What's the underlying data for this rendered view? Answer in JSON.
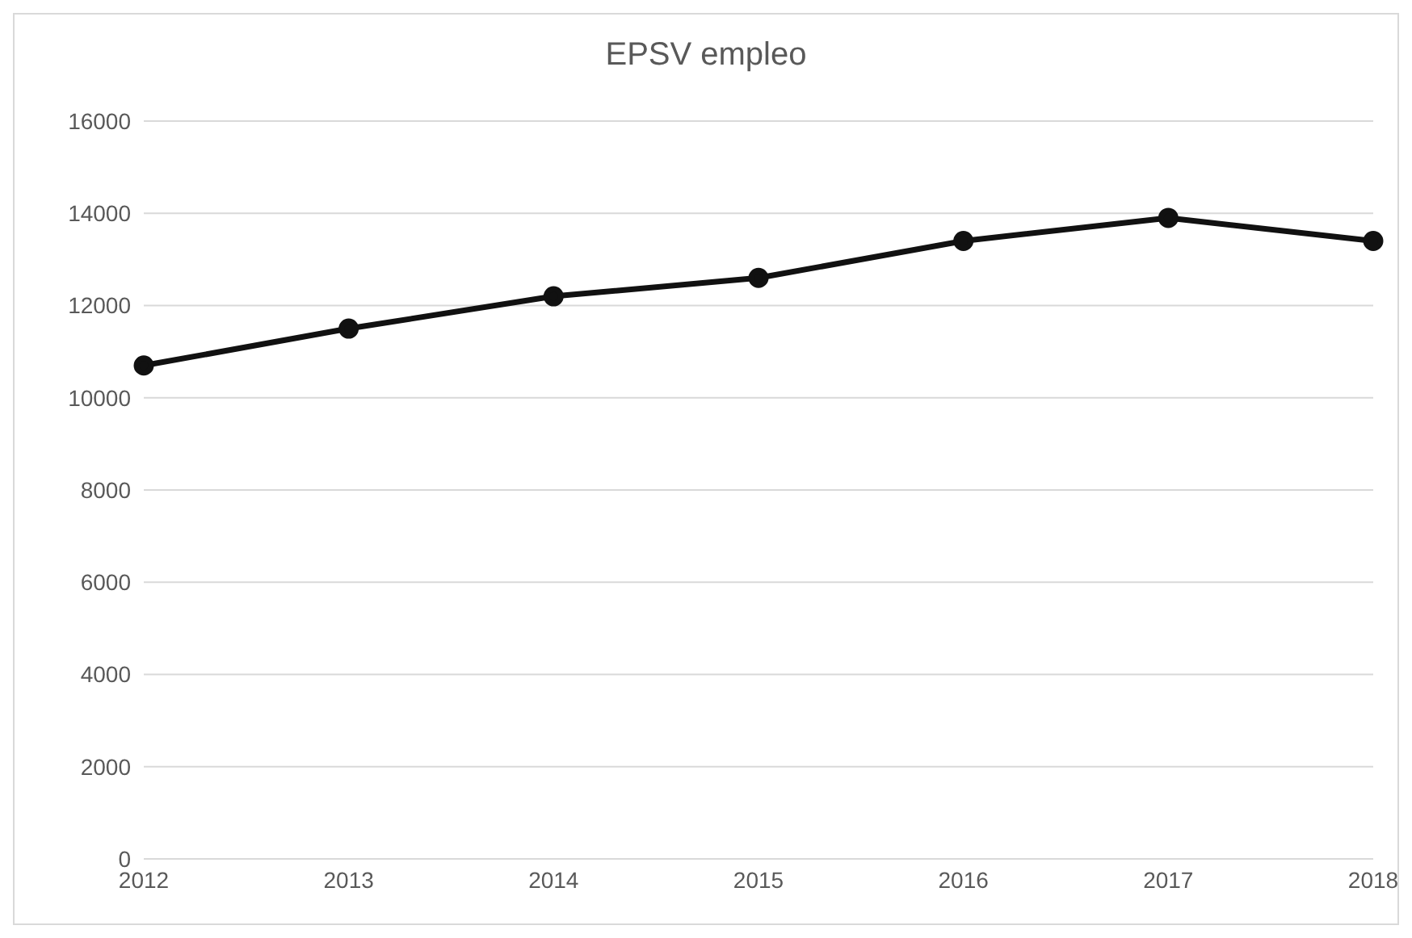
{
  "chart_data": {
    "type": "line",
    "title": "EPSV empleo",
    "categories": [
      "2012",
      "2013",
      "2014",
      "2015",
      "2016",
      "2017",
      "2018"
    ],
    "series": [
      {
        "color": "#111111",
        "values": [
          10700,
          11500,
          12200,
          12600,
          13400,
          13900,
          13400
        ]
      }
    ],
    "ylim": [
      0,
      16000
    ],
    "yticks": [
      0,
      2000,
      4000,
      6000,
      8000,
      10000,
      12000,
      14000,
      16000
    ],
    "grid": "y",
    "legend": false,
    "marker": "circle",
    "line_style": "solid"
  }
}
